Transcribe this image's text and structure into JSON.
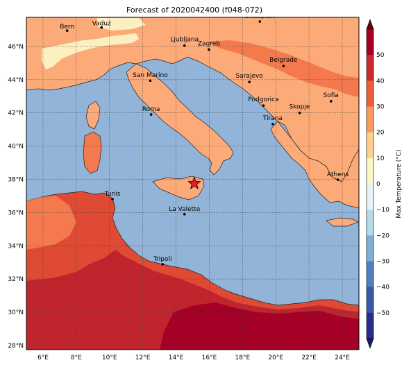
{
  "title": "Forecast of 2020042400 (f048-072)",
  "colorbar": {
    "label": "Max Temperature (°C)",
    "ticks": [
      "50",
      "40",
      "30",
      "20",
      "10",
      "0",
      "−10",
      "−20",
      "−30",
      "−40",
      "−50"
    ],
    "colors": [
      "#2b2d8c",
      "#3b58a8",
      "#4f7fbf",
      "#7eaed3",
      "#b6d9ea",
      "#e6f4f7",
      "#fdf6c4",
      "#fdd08c",
      "#f99a5f",
      "#ea5e3a",
      "#ca2b2b",
      "#a50026"
    ]
  },
  "axes": {
    "x_ticks": [
      "6°E",
      "8°E",
      "10°E",
      "12°E",
      "14°E",
      "16°E",
      "18°E",
      "20°E",
      "22°E",
      "24°E"
    ],
    "y_ticks": [
      "46°N",
      "44°N",
      "42°N",
      "40°N",
      "38°N",
      "36°N",
      "34°N",
      "32°N",
      "30°N",
      "28°N"
    ]
  },
  "cities": [
    {
      "name": "Bern"
    },
    {
      "name": "Vaduz"
    },
    {
      "name": "Budapest"
    },
    {
      "name": "Ljubljana"
    },
    {
      "name": "Zagreb"
    },
    {
      "name": "Belgrade"
    },
    {
      "name": "San Marino"
    },
    {
      "name": "Sarajevo"
    },
    {
      "name": "Sofia"
    },
    {
      "name": "Podgorica"
    },
    {
      "name": "Skopje"
    },
    {
      "name": "Roma"
    },
    {
      "name": "Tirana"
    },
    {
      "name": "Athens"
    },
    {
      "name": "Tunis"
    },
    {
      "name": "La Valette"
    },
    {
      "name": "Tripoli"
    }
  ],
  "marker": {
    "type": "star",
    "color": "#e8202a"
  },
  "map_colors": {
    "sea": "#91b4d8",
    "land_warm": "#fcaa78",
    "land_hot": "#f47a4e",
    "land_hotter": "#de4a33",
    "land_hottest": "#c0242c",
    "land_extreme": "#a50026",
    "cool": "#fdf0c0"
  }
}
